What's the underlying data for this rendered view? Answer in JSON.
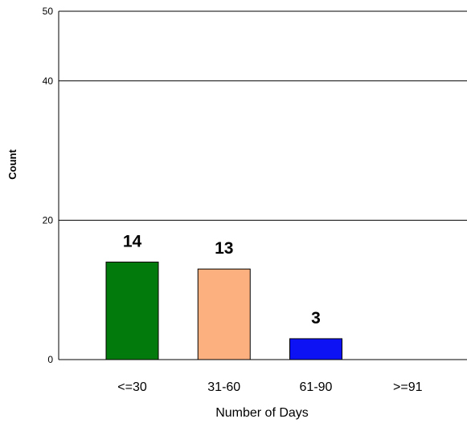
{
  "chart_data": {
    "type": "bar",
    "categories": [
      "<=30",
      "31-60",
      "61-90",
      ">=91"
    ],
    "values": [
      14,
      13,
      3,
      0
    ],
    "data_labels": [
      "14",
      "13",
      "3",
      ""
    ],
    "colors": [
      "#037a0c",
      "#fdb07f",
      "#0d12f5",
      "#ffffff"
    ],
    "y_ticks": [
      0,
      20,
      40,
      50
    ],
    "y_tick_labels": [
      "0",
      "20",
      "40",
      "50"
    ],
    "xlabel": "Number of Days",
    "ylabel": "Count",
    "ylim": [
      0,
      50
    ],
    "grid": true
  }
}
